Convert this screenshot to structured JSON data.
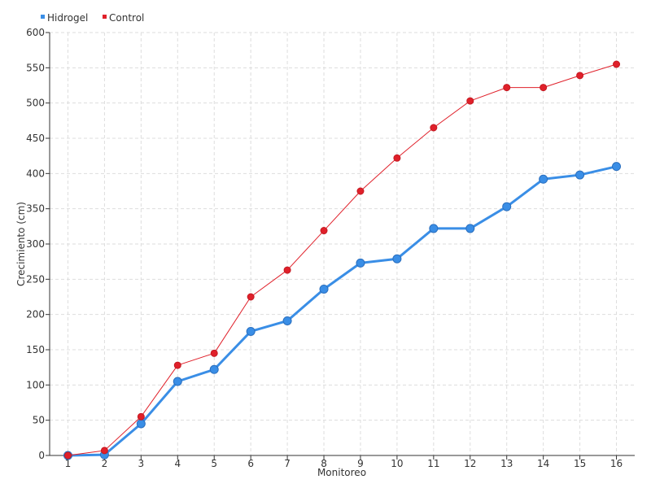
{
  "chart_data": {
    "type": "line",
    "title": "",
    "xlabel": "Monitoreo",
    "ylabel": "Crecimiento (cm)",
    "x": [
      1,
      2,
      3,
      4,
      5,
      6,
      7,
      8,
      9,
      10,
      11,
      12,
      13,
      14,
      15,
      16
    ],
    "xlim": [
      0.5,
      16.5
    ],
    "ylim": [
      0,
      600
    ],
    "yticks": [
      0,
      50,
      100,
      150,
      200,
      250,
      300,
      350,
      400,
      450,
      500,
      550,
      600
    ],
    "grid": true,
    "legend_position": "top-left",
    "series": [
      {
        "name": "Hidrogel",
        "color": "#3a8ee6",
        "values": [
          0,
          1,
          45,
          105,
          122,
          176,
          191,
          236,
          273,
          279,
          322,
          322,
          353,
          392,
          398,
          410
        ]
      },
      {
        "name": "Control",
        "color": "#e0202a",
        "values": [
          0,
          7,
          55,
          128,
          145,
          225,
          263,
          319,
          375,
          422,
          465,
          503,
          522,
          522,
          539,
          555
        ]
      }
    ]
  }
}
